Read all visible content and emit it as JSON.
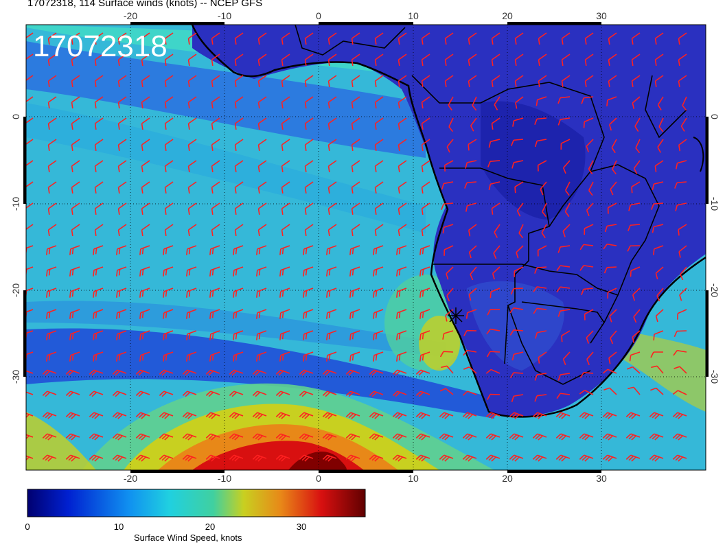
{
  "title": "17072318, 114 Surface winds (knots) -- NCEP GFS",
  "timestamp_overlay": "17072318",
  "map": {
    "lon_range": [
      -31,
      40
    ],
    "lat_range": [
      -42,
      9
    ],
    "lon_tick_labels": [
      "-20",
      "-10",
      "0",
      "10",
      "20",
      "30"
    ],
    "lat_tick_labels": [
      "0",
      "-10",
      "-20",
      "-30"
    ],
    "grid": true,
    "wind_barb_color": "#ff2020",
    "land_color": "#2530b8",
    "coastline_color": "#000000"
  },
  "colorbar": {
    "label": "Surface Wind Speed, knots",
    "range": [
      0,
      37
    ],
    "tick_labels": [
      "0",
      "10",
      "20",
      "30"
    ],
    "colors": [
      "#000070",
      "#0030f0",
      "#20c8e8",
      "#30d0c0",
      "#c8d020",
      "#e88018",
      "#c00000",
      "#600000"
    ]
  }
}
